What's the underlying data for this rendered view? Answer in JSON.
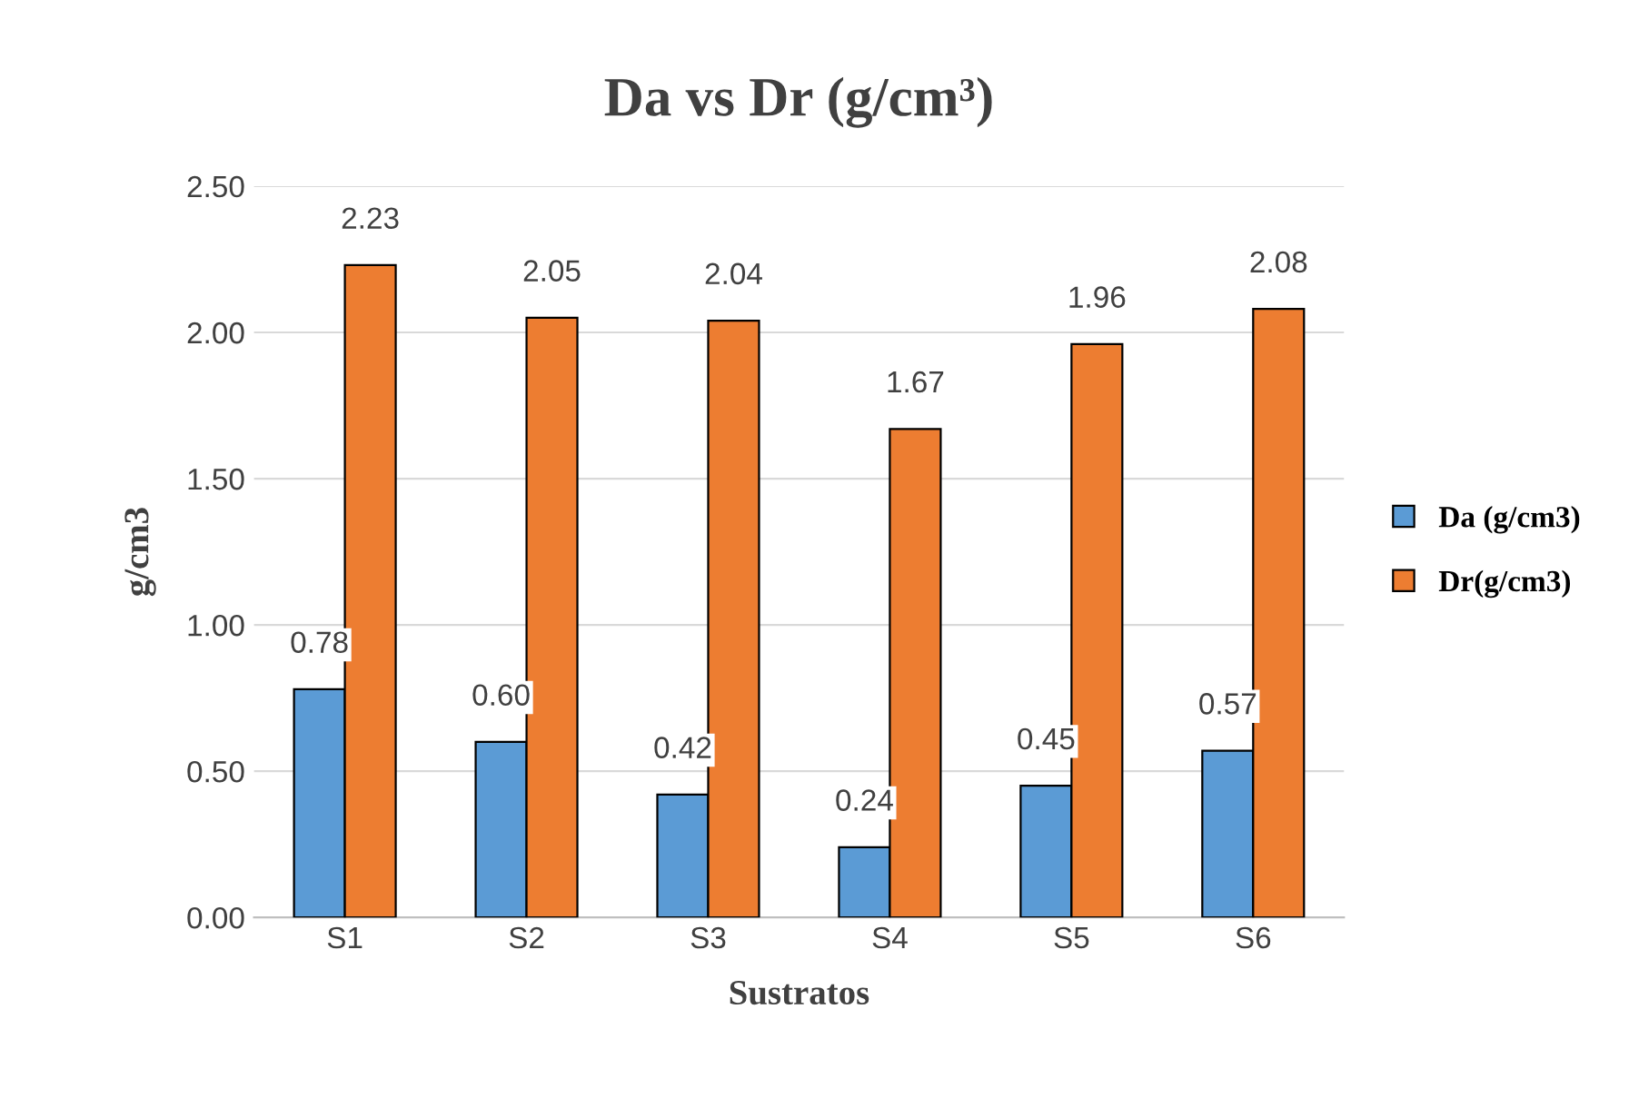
{
  "chart_data": {
    "type": "bar",
    "title": "Da vs Dr (g/cm³)",
    "xlabel": "Sustratos",
    "ylabel": "g/cm3",
    "categories": [
      "S1",
      "S2",
      "S3",
      "S4",
      "S5",
      "S6"
    ],
    "series": [
      {
        "name": "Da (g/cm3)",
        "color": "#5b9bd5",
        "values": [
          0.78,
          0.6,
          0.42,
          0.24,
          0.45,
          0.57
        ],
        "value_labels": [
          "0.78",
          "0.60",
          "0.42",
          "0.24",
          "0.45",
          "0.57"
        ]
      },
      {
        "name": "Dr(g/cm3)",
        "color": "#ed7d31",
        "values": [
          2.23,
          2.05,
          2.04,
          1.67,
          1.96,
          2.08
        ],
        "value_labels": [
          "2.23",
          "2.05",
          "2.04",
          "1.67",
          "1.96",
          "2.08"
        ]
      }
    ],
    "ylim": [
      0,
      2.5
    ],
    "yticks": [
      {
        "value": 0,
        "label": "0.00"
      },
      {
        "value": 0.5,
        "label": "0.50"
      },
      {
        "value": 1,
        "label": "1.00"
      },
      {
        "value": 1.5,
        "label": "1.50"
      },
      {
        "value": 2,
        "label": "2.00"
      },
      {
        "value": 2.5,
        "label": "2.50"
      }
    ],
    "grid": "y",
    "legend": "right"
  }
}
